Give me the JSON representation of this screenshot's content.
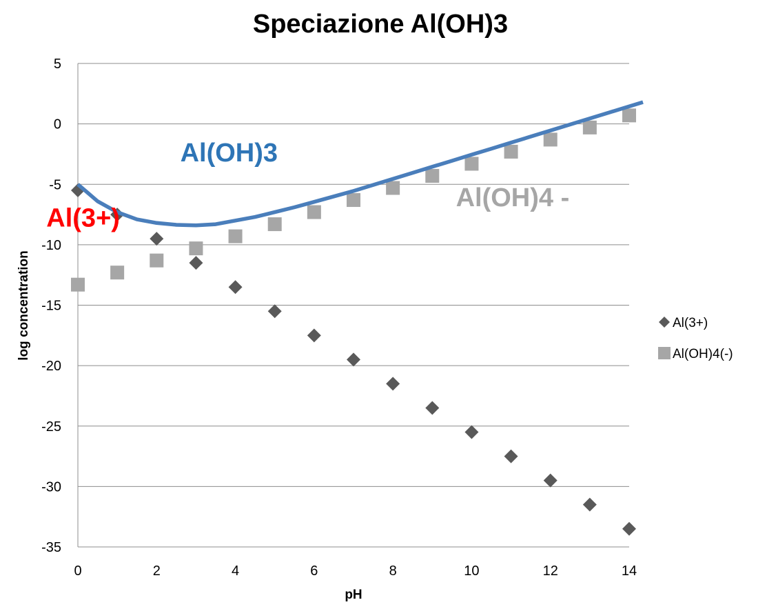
{
  "chart_data": {
    "type": "scatter",
    "title": "Speciazione Al(OH)3",
    "xlabel": "pH",
    "ylabel": "log concentration",
    "xlim": [
      0,
      14
    ],
    "ylim": [
      -35,
      5
    ],
    "xticks": [
      0,
      2,
      4,
      6,
      8,
      10,
      12,
      14
    ],
    "yticks": [
      5,
      0,
      -5,
      -10,
      -15,
      -20,
      -25,
      -30,
      -35
    ],
    "grid": "horizontal",
    "legend_position": "right",
    "series": [
      {
        "name": "Al(3+)",
        "marker": "diamond",
        "color": "#595959",
        "x": [
          0,
          1,
          2,
          3,
          4,
          5,
          6,
          7,
          8,
          9,
          10,
          11,
          12,
          13,
          14
        ],
        "y": [
          -5.5,
          -7.5,
          -9.5,
          -11.5,
          -13.5,
          -15.5,
          -17.5,
          -19.5,
          -21.5,
          -23.5,
          -25.5,
          -27.5,
          -29.5,
          -31.5,
          -33.5
        ]
      },
      {
        "name": "Al(OH)4(-)",
        "marker": "square",
        "color": "#a6a6a6",
        "x": [
          0,
          1,
          2,
          3,
          4,
          5,
          6,
          7,
          8,
          9,
          10,
          11,
          12,
          13,
          14
        ],
        "y": [
          -13.3,
          -12.3,
          -11.3,
          -10.3,
          -9.3,
          -8.3,
          -7.3,
          -6.3,
          -5.3,
          -4.3,
          -3.3,
          -2.3,
          -1.3,
          -0.3,
          0.7
        ]
      },
      {
        "marker": "line",
        "color": "#4a7ebb",
        "in_legend": false,
        "x": [
          0,
          0.5,
          1,
          1.5,
          2,
          2.5,
          3,
          3.5,
          4,
          4.5,
          5,
          5.5,
          6,
          6.5,
          7,
          7.5,
          8,
          8.5,
          9,
          9.5,
          10,
          10.5,
          11,
          11.5,
          12,
          12.5,
          13,
          13.5,
          14,
          14.35
        ],
        "y": [
          -5.0,
          -6.4,
          -7.3,
          -7.9,
          -8.2,
          -8.35,
          -8.4,
          -8.3,
          -8.0,
          -7.7,
          -7.3,
          -6.9,
          -6.45,
          -6.0,
          -5.55,
          -5.05,
          -4.55,
          -4.05,
          -3.55,
          -3.05,
          -2.55,
          -2.05,
          -1.55,
          -1.05,
          -0.55,
          -0.05,
          0.45,
          0.95,
          1.45,
          1.8
        ]
      }
    ],
    "annotations": [
      {
        "text": "Al(OH)3",
        "color": "#2e75b6",
        "x": 2.6,
        "y": -3.1
      },
      {
        "text": "Al(3+)",
        "color": "#ff0000",
        "x": -0.8,
        "y": -8.5
      },
      {
        "text": "Al(OH)4 -",
        "color": "#a6a6a6",
        "x": 9.6,
        "y": -6.8
      }
    ]
  }
}
